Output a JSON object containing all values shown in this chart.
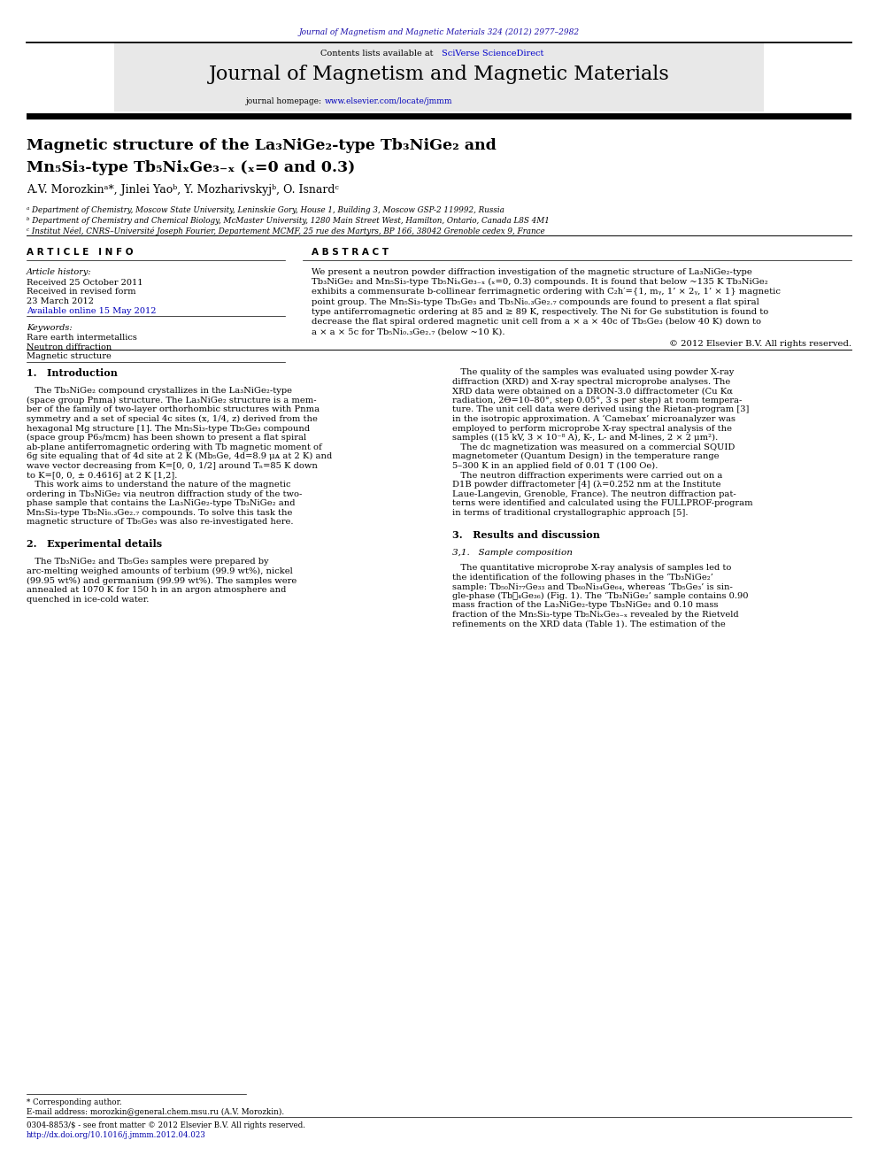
{
  "bg_color": "#ffffff",
  "page_width": 9.92,
  "page_height": 13.23,
  "journal_ref_text": "Journal of Magnetism and Magnetic Materials 324 (2012) 2977–2982",
  "journal_ref_color": "#1a0dab",
  "header_bg": "#e8e8e8",
  "header_title": "Journal of Magnetism and Magnetic Materials",
  "sciverse_color": "#0000cc",
  "paper_title_line1": "Magnetic structure of the La₃NiGe₂-type Tb₃NiGe₂ and",
  "paper_title_line2": "Mn₅Si₃-type Tb₅NiₓGe₃₋ₓ (ₓ=0 and 0.3)",
  "authors": "A.V. Morozkinᵃ*, Jinlei Yaoᵇ, Y. Mozharivskyjᵇ, O. Isnardᶜ",
  "aff_a": "ᵃ Department of Chemistry, Moscow State University, Leninskie Gory, House 1, Building 3, Moscow GSP-2 119992, Russia",
  "aff_b": "ᵇ Department of Chemistry and Chemical Biology, McMaster University, 1280 Main Street West, Hamilton, Ontario, Canada L8S 4M1",
  "aff_c": "ᶜ Institut Néel, CNRS–Université Joseph Fourier, Departement MCMF, 25 rue des Martyrs, BP 166, 38042 Grenoble cedex 9, France",
  "article_info_title": "A R T I C L E   I N F O",
  "article_history_title": "Article history:",
  "received1": "Received 25 October 2011",
  "received2": "Received in revised form",
  "received3": "23 March 2012",
  "available": "Available online 15 May 2012",
  "keywords_title": "Keywords:",
  "kw1": "Rare earth intermetallics",
  "kw2": "Neutron diffraction",
  "kw3": "Magnetic structure",
  "abstract_title": "A B S T R A C T",
  "abstract_text": "We present a neutron powder diffraction investigation of the magnetic structure of La₃NiGe₂-type Tb₃NiGe₂ and Mn₅Si₃-type Tb₅NiₓGe₃₋ₓ (ₓ=0, 0.3) compounds. It is found that below ~135 K Tb₃NiGe₂ exhibits a commensurate b-collinear ferrimagnetic ordering with C₂h′={1, mᵧ, 1’ × 2ᵧ, 1’ × 1} magnetic point group. The Mn₅Si₃-type Tb₅Ge₃ and Tb₅Ni₀.₃Ge₂.₇ compounds are found to present a flat spiral type antiferromagnetic ordering at 85 and ≥ 89 K, respectively. The Ni for Ge substitution is found to decrease the flat spiral ordered magnetic unit cell from a × a × 40c of Tb₅Ge₃ (below 40 K) down to a × a × 5c for Tb₅Ni₀.₃Ge₂.₇ (below ~10 K).",
  "copyright": "© 2012 Elsevier B.V. All rights reserved.",
  "intro_title": "1.   Introduction",
  "intro_col1": [
    "   The Tb₃NiGe₂ compound crystallizes in the La₃NiGe₂-type",
    "(space group Pnma) structure. The La₃NiGe₂ structure is a mem-",
    "ber of the family of two-layer orthorhombic structures with Pnma",
    "symmetry and a set of special 4c sites (x, 1/4, z) derived from the",
    "hexagonal Mg structure [1]. The Mn₅Si₃-type Tb₅Ge₃ compound",
    "(space group P6₃/mcm) has been shown to present a flat spiral",
    "ab-plane antiferromagnetic ordering with Tb magnetic moment of",
    "6g site equaling that of 4d site at 2 K (Mb₅Ge, 4d=8.9 μᴀ at 2 K) and",
    "wave vector decreasing from K=[0, 0, 1/2] around Tₙ=85 K down",
    "to K=[0, 0, ± 0.4616] at 2 K [1,2].",
    "   This work aims to understand the nature of the magnetic",
    "ordering in Tb₃NiGe₂ via neutron diffraction study of the two-",
    "phase sample that contains the La₃NiGe₂-type Tb₃NiGe₂ and",
    "Mn₅Si₃-type Tb₅Ni₀.₃Ge₂.₇ compounds. To solve this task the",
    "magnetic structure of Tb₅Ge₃ was also re-investigated here."
  ],
  "sec2_title": "2.   Experimental details",
  "sec2_col1": [
    "   The Tb₃NiGe₂ and Tb₅Ge₃ samples were prepared by",
    "arc-melting weighed amounts of terbium (99.9 wt%), nickel",
    "(99.95 wt%) and germanium (99.99 wt%). The samples were",
    "annealed at 1070 K for 150 h in an argon atmosphere and",
    "quenched in ice-cold water."
  ],
  "intro_col2": [
    "   The quality of the samples was evaluated using powder X-ray",
    "diffraction (XRD) and X-ray spectral microprobe analyses. The",
    "XRD data were obtained on a DRON-3.0 diffractometer (Cu Kα",
    "radiation, 2Θ=10–80°, step 0.05°, 3 s per step) at room tempera-",
    "ture. The unit cell data were derived using the Rietan-program [3]",
    "in the isotropic approximation. A ‘Camebax’ microanalyzer was",
    "employed to perform microprobe X-ray spectral analysis of the",
    "samples ((15 kV, 3 × 10⁻⁸ A), K-, L- and M-lines, 2 × 2 μm²).",
    "   The dc magnetization was measured on a commercial SQUID",
    "magnetometer (Quantum Design) in the temperature range",
    "5–300 K in an applied field of 0.01 T (100 Oe).",
    "   The neutron diffraction experiments were carried out on a",
    "D1B powder diffractometer [4] (λ=0.252 nm at the Institute",
    "Laue-Langevin, Grenoble, France). The neutron diffraction pat-",
    "terns were identified and calculated using the FULLPROF-program",
    "in terms of traditional crystallographic approach [5]."
  ],
  "sec3_title": "3.   Results and discussion",
  "sec31_title": "3,1.   Sample composition",
  "sec3_col2": [
    "   The quantitative microprobe X-ray analysis of samples led to",
    "the identification of the following phases in the ‘Tb₃NiGe₂’",
    "sample: Tb₅₀Ni₇₇Ge₃₃ and Tb₆₀Ni₃₄Ge₆₄, whereas ‘Tb₅Ge₃’ is sin-",
    "gle-phase (Tb⁦₄Ge₃₆) (Fig. 1). The ‘Tb₃NiGe₂’ sample contains 0.90",
    "mass fraction of the La₃NiGe₂-type Tb₃NiGe₂ and 0.10 mass",
    "fraction of the Mn₅Si₃-type Tb₅NiₓGe₃₋ₓ revealed by the Rietveld",
    "refinements on the XRD data (Table 1). The estimation of the"
  ],
  "footnote_star": "* Corresponding author.",
  "footnote_email": "E-mail address: morozkin@general.chem.msu.ru (A.V. Morozkin).",
  "footer1": "0304-8853/$ - see front matter © 2012 Elsevier B.V. All rights reserved.",
  "footer2": "http://dx.doi.org/10.1016/j.jmmm.2012.04.023"
}
